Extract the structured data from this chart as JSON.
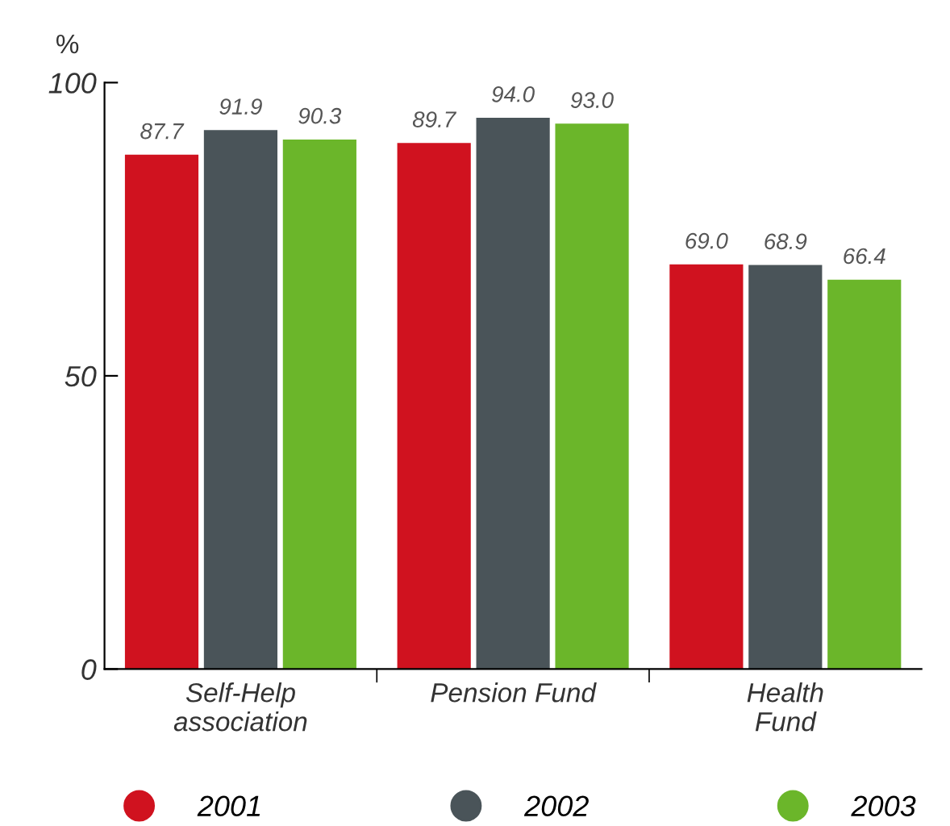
{
  "chart_data": {
    "type": "bar",
    "ylabel": "%",
    "categories": [
      "Self-Help\nassociation",
      "Pension Fund",
      "Health\nFund"
    ],
    "series": [
      {
        "name": "2001",
        "color": "#d0121f",
        "values": [
          87.7,
          89.7,
          69.0
        ],
        "value_labels": [
          "87.7",
          "89.7",
          "69.0"
        ]
      },
      {
        "name": "2002",
        "color": "#4a5459",
        "values": [
          91.9,
          94.0,
          68.9
        ],
        "value_labels": [
          "91.9",
          "94.0",
          "68.9"
        ]
      },
      {
        "name": "2003",
        "color": "#6bb62a",
        "values": [
          90.3,
          93.0,
          66.4
        ],
        "value_labels": [
          "90.3",
          "93.0",
          "66.4"
        ]
      }
    ],
    "ylim": [
      0,
      100
    ],
    "yticks": [
      0,
      50,
      100
    ],
    "grid": false,
    "legend": "bottom"
  }
}
